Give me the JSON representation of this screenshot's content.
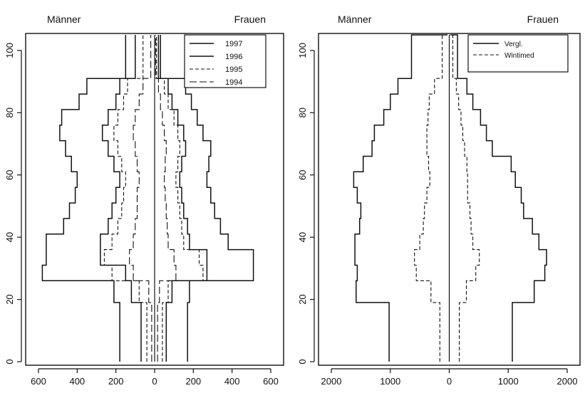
{
  "chart_data": [
    {
      "type": "line",
      "title_left": "Männer",
      "title_right": "Frauen",
      "xlim": [
        -600,
        600
      ],
      "ylim": [
        0,
        105
      ],
      "xticks": [
        -600,
        -400,
        -200,
        0,
        200,
        400,
        600
      ],
      "xtick_labels": [
        "600",
        "400",
        "200",
        "0",
        "200",
        "400",
        "600"
      ],
      "yticks": [
        0,
        20,
        40,
        60,
        80,
        100
      ],
      "ytick_labels": [
        "0",
        "20",
        "40",
        "60",
        "80",
        "100"
      ],
      "legend": "top-right",
      "age_breaks": [
        0,
        19,
        26,
        31,
        36,
        41,
        46,
        51,
        56,
        61,
        66,
        71,
        76,
        81,
        86,
        91,
        105
      ],
      "series": [
        {
          "name": "1997",
          "dash": "solid",
          "men": [
            180,
            210,
            580,
            560,
            560,
            470,
            440,
            410,
            400,
            430,
            460,
            490,
            480,
            390,
            350,
            150
          ],
          "women": [
            170,
            180,
            510,
            510,
            380,
            340,
            310,
            290,
            270,
            280,
            290,
            250,
            220,
            190,
            160,
            30
          ]
        },
        {
          "name": "1996",
          "dash": "solid",
          "men": [
            70,
            120,
            150,
            280,
            280,
            240,
            220,
            200,
            180,
            210,
            240,
            270,
            240,
            200,
            180,
            100
          ],
          "women": [
            60,
            90,
            270,
            270,
            180,
            170,
            150,
            140,
            130,
            140,
            160,
            150,
            120,
            90,
            70,
            20
          ]
        },
        {
          "name": "1995",
          "dash": "dash",
          "men": [
            40,
            80,
            220,
            260,
            220,
            190,
            170,
            160,
            150,
            170,
            190,
            210,
            190,
            160,
            140,
            60
          ],
          "women": [
            40,
            70,
            250,
            230,
            150,
            140,
            130,
            120,
            110,
            120,
            130,
            120,
            100,
            70,
            50,
            10
          ]
        },
        {
          "name": "1994",
          "dash": "longdash",
          "men": [
            15,
            30,
            110,
            130,
            110,
            100,
            90,
            90,
            80,
            90,
            100,
            110,
            100,
            80,
            60,
            20
          ],
          "women": [
            15,
            25,
            110,
            100,
            70,
            65,
            60,
            55,
            50,
            55,
            60,
            50,
            40,
            30,
            20,
            5
          ]
        }
      ]
    },
    {
      "type": "line",
      "title_left": "Männer",
      "title_right": "Frauen",
      "xlim": [
        -2000,
        2000
      ],
      "ylim": [
        0,
        105
      ],
      "xticks": [
        -2000,
        -1000,
        0,
        1000,
        2000
      ],
      "xtick_labels": [
        "2000",
        "1000",
        "0",
        "1000",
        "2000"
      ],
      "yticks": [
        0,
        20,
        40,
        60,
        80,
        100
      ],
      "ytick_labels": [
        "0",
        "20",
        "40",
        "60",
        "80",
        "100"
      ],
      "legend": "top-right",
      "age_breaks": [
        0,
        19,
        26,
        31,
        36,
        41,
        46,
        51,
        56,
        61,
        66,
        71,
        76,
        81,
        86,
        91,
        105
      ],
      "series": [
        {
          "name": "Vergl.",
          "dash": "solid",
          "men": [
            1020,
            1580,
            1560,
            1600,
            1600,
            1520,
            1500,
            1560,
            1620,
            1460,
            1310,
            1270,
            1110,
            1000,
            870,
            640,
            30
          ],
          "women": [
            1070,
            1440,
            1620,
            1650,
            1520,
            1410,
            1260,
            1220,
            1120,
            1050,
            730,
            630,
            530,
            400,
            300,
            140,
            20
          ]
        },
        {
          "name": "Wintimed",
          "dash": "dash",
          "men": [
            160,
            310,
            560,
            590,
            500,
            440,
            420,
            380,
            330,
            350,
            380,
            380,
            360,
            340,
            250,
            120,
            10
          ],
          "women": [
            170,
            290,
            450,
            510,
            400,
            370,
            350,
            310,
            310,
            300,
            260,
            230,
            200,
            160,
            120,
            60,
            5
          ]
        }
      ]
    }
  ]
}
